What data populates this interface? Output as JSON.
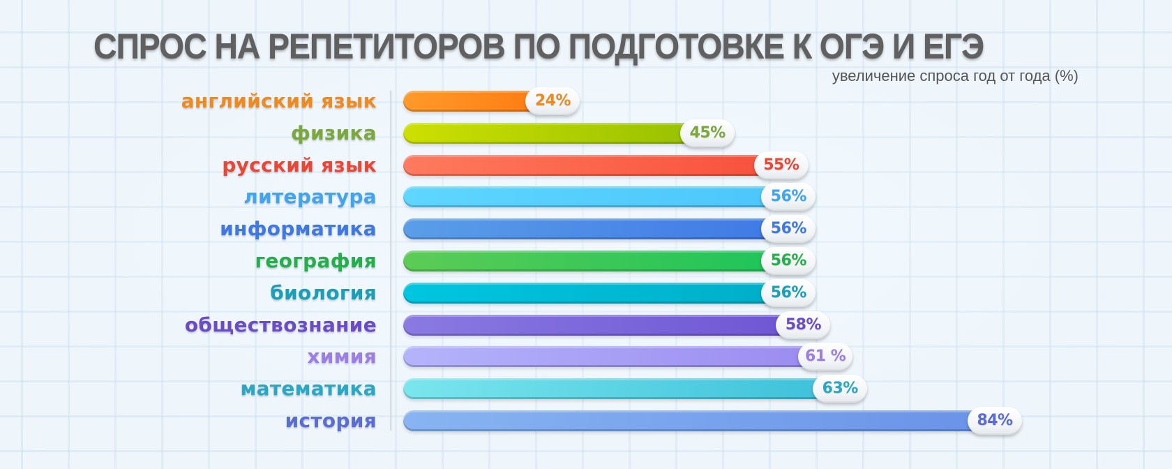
{
  "title": "СПРОС НА РЕПЕТИТОРОВ ПО ПОДГОТОВКЕ К ОГЭ И ЕГЭ",
  "subtitle": "увеличение спроса год от года (%)",
  "colors": {
    "background": "#eef6fc",
    "title": "#606060",
    "subtitle": "#555555",
    "axis": "#d9dde2"
  },
  "chart_data": {
    "type": "bar",
    "orientation": "horizontal",
    "title": "СПРОС НА РЕПЕТИТОРОВ ПО ПОДГОТОВКЕ К ОГЭ И ЕГЭ",
    "subtitle": "увеличение спроса год от года (%)",
    "xlabel": "",
    "ylabel": "",
    "xlim": [
      0,
      90
    ],
    "grid": false,
    "legend": null,
    "categories": [
      "английский язык",
      "физика",
      "русский язык",
      "литература",
      "информатика",
      "география",
      "биология",
      "обществознание",
      "химия",
      "математика",
      "история"
    ],
    "values": [
      24,
      45,
      55,
      56,
      56,
      56,
      56,
      58,
      61,
      63,
      84
    ],
    "value_labels": [
      "24%",
      "45%",
      "55%",
      "56%",
      "56%",
      "56%",
      "56%",
      "58%",
      "61 %",
      "63%",
      "84%"
    ],
    "unit": "%"
  },
  "rows": [
    {
      "label": "английский язык",
      "value": 24,
      "value_label": "24%",
      "text_color": "#f08a1c",
      "bar_from": "#ff9a2a",
      "bar_to": "#ff7a10"
    },
    {
      "label": "физика",
      "value": 45,
      "value_label": "45%",
      "text_color": "#7aa83a",
      "bar_from": "#cde000",
      "bar_to": "#96c000"
    },
    {
      "label": "русский язык",
      "value": 55,
      "value_label": "55%",
      "text_color": "#ee4433",
      "bar_from": "#ff7a5e",
      "bar_to": "#f8503a"
    },
    {
      "label": "литература",
      "value": 56,
      "value_label": "56%",
      "text_color": "#3fa5f2",
      "bar_from": "#5ed6ff",
      "bar_to": "#4cc6fb"
    },
    {
      "label": "информатика",
      "value": 56,
      "value_label": "56%",
      "text_color": "#3d78e8",
      "bar_from": "#5a9ee8",
      "bar_to": "#3f78e6"
    },
    {
      "label": "география",
      "value": 56,
      "value_label": "56%",
      "text_color": "#22b04a",
      "bar_from": "#5ccc55",
      "bar_to": "#1cc45a"
    },
    {
      "label": "биология",
      "value": 56,
      "value_label": "56%",
      "text_color": "#1a9fb8",
      "bar_from": "#00c6e0",
      "bar_to": "#00aec8"
    },
    {
      "label": "обществознание",
      "value": 58,
      "value_label": "58%",
      "text_color": "#6a4cc8",
      "bar_from": "#8a7ae2",
      "bar_to": "#6e55d4"
    },
    {
      "label": "химия",
      "value": 61,
      "value_label": "61 %",
      "text_color": "#9b7ee6",
      "bar_from": "#b4b4fa",
      "bar_to": "#9b8af0"
    },
    {
      "label": "математика",
      "value": 63,
      "value_label": "63%",
      "text_color": "#28a8c4",
      "bar_from": "#7ae6ee",
      "bar_to": "#3cc0da"
    },
    {
      "label": "история",
      "value": 84,
      "value_label": "84%",
      "text_color": "#5a6cd8",
      "bar_from": "#88b4f2",
      "bar_to": "#6a92e8"
    }
  ]
}
